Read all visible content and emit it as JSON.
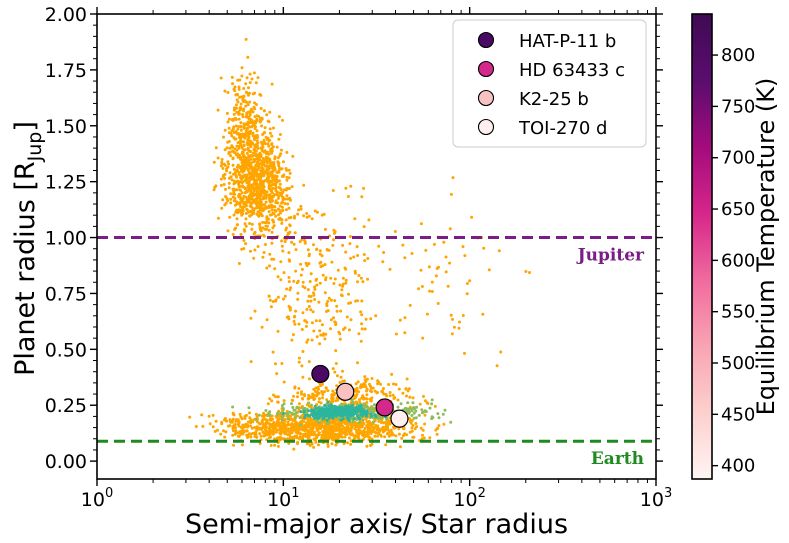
{
  "chart_data": {
    "type": "scatter",
    "xscale": "log",
    "xlim": [
      1,
      1000
    ],
    "ylim": [
      -0.08,
      2.0
    ],
    "xlabel": "Semi-major axis/ Star radius",
    "ylabel_main": "Planet radius [R",
    "ylabel_sub": "Jup",
    "ylabel_close": "]",
    "x_tick_labels": [
      {
        "value": 1,
        "base": "10",
        "exp": "0"
      },
      {
        "value": 10,
        "base": "10",
        "exp": "1"
      },
      {
        "value": 100,
        "base": "10",
        "exp": "2"
      },
      {
        "value": 1000,
        "base": "10",
        "exp": "3"
      }
    ],
    "y_ticks": [
      0.0,
      0.25,
      0.5,
      0.75,
      1.0,
      1.25,
      1.5,
      1.75,
      2.0
    ],
    "y_tick_labels": [
      "0.00",
      "0.25",
      "0.50",
      "0.75",
      "1.00",
      "1.25",
      "1.50",
      "1.75",
      "2.00"
    ],
    "reference_lines": [
      {
        "name": "Jupiter",
        "label": "Jupiter",
        "y": 1.0,
        "color": "#7b1d87"
      },
      {
        "name": "Earth",
        "label": "Earth",
        "y": 0.089,
        "color": "#1f8a1f"
      }
    ],
    "background_populations": [
      {
        "name": "known-exoplanets",
        "color": "#ffa500"
      },
      {
        "name": "small-planets-green",
        "color": "#8fbc5a"
      },
      {
        "name": "small-planets-teal",
        "color": "#2bb59e"
      }
    ],
    "highlighted": [
      {
        "name": "HAT-P-11 b",
        "x": 15.8,
        "y": 0.39,
        "teq": 840,
        "color": "#4a0a63"
      },
      {
        "name": "HD 63433 c",
        "x": 35,
        "y": 0.24,
        "teq": 700,
        "color": "#d4288a"
      },
      {
        "name": "K2-25 b",
        "x": 21.5,
        "y": 0.31,
        "teq": 494,
        "color": "#f9c2c2"
      },
      {
        "name": "TOI-270 d",
        "x": 42,
        "y": 0.19,
        "teq": 387,
        "color": "#fdf0ee"
      }
    ],
    "colorbar": {
      "label": "Equilibrium Temperature (K)",
      "min": 387,
      "max": 840,
      "ticks": [
        400,
        450,
        500,
        550,
        600,
        650,
        700,
        750,
        800
      ],
      "tick_labels": [
        "400",
        "450",
        "500",
        "550",
        "600",
        "650",
        "700",
        "750",
        "800"
      ],
      "colors": [
        "#fff5f3",
        "#fcd0cd",
        "#f9a4b3",
        "#f06a9e",
        "#d6268a",
        "#a30b7d",
        "#5a0d6e",
        "#3f0a54"
      ]
    },
    "legend_position": "top-right"
  }
}
